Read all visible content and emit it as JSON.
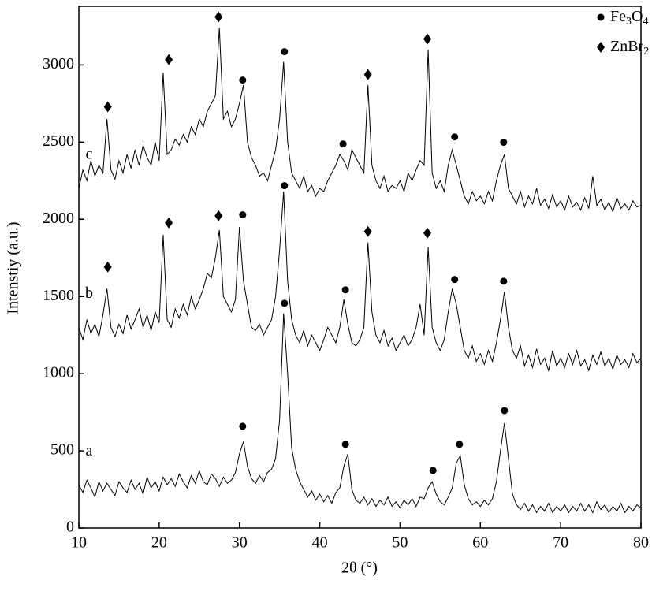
{
  "chart_data": {
    "type": "line",
    "x_label": "2θ (°)",
    "y_label": "Intenstiy (a.u.)",
    "xlim": [
      10,
      80
    ],
    "ylim": [
      0,
      3380
    ],
    "xticks": [
      10,
      20,
      30,
      40,
      50,
      60,
      70,
      80
    ],
    "yticks": [
      0,
      500,
      1000,
      1500,
      2000,
      2500,
      3000
    ],
    "x": [
      10,
      10.5,
      11,
      11.5,
      12,
      12.5,
      13,
      13.5,
      14,
      14.5,
      15,
      15.5,
      16,
      16.5,
      17,
      17.5,
      18,
      18.5,
      19,
      19.5,
      20,
      20.5,
      21,
      21.5,
      22,
      22.5,
      23,
      23.5,
      24,
      24.5,
      25,
      25.5,
      26,
      26.5,
      27,
      27.5,
      28,
      28.5,
      29,
      29.5,
      30,
      30.5,
      31,
      31.5,
      32,
      32.5,
      33,
      33.5,
      34,
      34.5,
      35,
      35.5,
      36,
      36.5,
      37,
      37.5,
      38,
      38.5,
      39,
      39.5,
      40,
      40.5,
      41,
      41.5,
      42,
      42.5,
      43,
      43.5,
      44,
      44.5,
      45,
      45.5,
      46,
      46.5,
      47,
      47.5,
      48,
      48.5,
      49,
      49.5,
      50,
      50.5,
      51,
      51.5,
      52,
      52.5,
      53,
      53.5,
      54,
      54.5,
      55,
      55.5,
      56,
      56.5,
      57,
      57.5,
      58,
      58.5,
      59,
      59.5,
      60,
      60.5,
      61,
      61.5,
      62,
      62.5,
      63,
      63.5,
      64,
      64.5,
      65,
      65.5,
      66,
      66.5,
      67,
      67.5,
      68,
      68.5,
      69,
      69.5,
      70,
      70.5,
      71,
      71.5,
      72,
      72.5,
      73,
      73.5,
      74,
      74.5,
      75,
      75.5,
      76,
      76.5,
      77,
      77.5,
      78,
      78.5,
      79,
      79.5,
      80
    ],
    "series": [
      {
        "name": "a",
        "color": "#000000",
        "values": [
          280,
          230,
          310,
          260,
          200,
          300,
          240,
          290,
          250,
          210,
          300,
          260,
          230,
          310,
          250,
          290,
          220,
          330,
          260,
          300,
          240,
          330,
          280,
          320,
          270,
          350,
          300,
          260,
          340,
          290,
          370,
          300,
          280,
          350,
          320,
          270,
          330,
          290,
          310,
          360,
          480,
          560,
          400,
          320,
          290,
          340,
          300,
          360,
          380,
          450,
          700,
          1390,
          1000,
          520,
          380,
          300,
          250,
          200,
          240,
          180,
          220,
          170,
          210,
          160,
          230,
          260,
          400,
          480,
          250,
          180,
          160,
          200,
          150,
          190,
          140,
          180,
          150,
          200,
          140,
          170,
          130,
          180,
          150,
          190,
          140,
          200,
          190,
          260,
          300,
          220,
          170,
          150,
          200,
          260,
          420,
          470,
          280,
          190,
          150,
          170,
          140,
          180,
          150,
          190,
          300,
          500,
          680,
          450,
          220,
          150,
          120,
          160,
          110,
          150,
          100,
          140,
          110,
          160,
          100,
          140,
          110,
          150,
          100,
          140,
          110,
          160,
          110,
          150,
          100,
          170,
          120,
          150,
          100,
          140,
          110,
          160,
          100,
          140,
          110,
          150,
          130
        ]
      },
      {
        "name": "b",
        "color": "#000000",
        "values": [
          1300,
          1220,
          1350,
          1260,
          1320,
          1240,
          1380,
          1550,
          1300,
          1240,
          1320,
          1260,
          1380,
          1290,
          1350,
          1420,
          1300,
          1380,
          1280,
          1400,
          1330,
          1900,
          1350,
          1300,
          1420,
          1360,
          1450,
          1380,
          1500,
          1420,
          1480,
          1550,
          1650,
          1620,
          1750,
          1930,
          1500,
          1450,
          1400,
          1480,
          1950,
          1600,
          1450,
          1300,
          1280,
          1320,
          1250,
          1300,
          1350,
          1500,
          1800,
          2180,
          1600,
          1350,
          1250,
          1200,
          1280,
          1180,
          1250,
          1200,
          1150,
          1220,
          1300,
          1250,
          1200,
          1300,
          1480,
          1320,
          1200,
          1180,
          1220,
          1300,
          1850,
          1400,
          1250,
          1200,
          1280,
          1180,
          1230,
          1150,
          1200,
          1250,
          1180,
          1220,
          1300,
          1450,
          1250,
          1820,
          1300,
          1200,
          1150,
          1220,
          1400,
          1550,
          1450,
          1300,
          1150,
          1100,
          1180,
          1080,
          1130,
          1060,
          1150,
          1080,
          1200,
          1350,
          1530,
          1300,
          1150,
          1100,
          1180,
          1050,
          1120,
          1040,
          1160,
          1060,
          1100,
          1020,
          1150,
          1050,
          1100,
          1040,
          1130,
          1060,
          1150,
          1050,
          1090,
          1020,
          1120,
          1060,
          1140,
          1050,
          1100,
          1030,
          1120,
          1060,
          1090,
          1040,
          1130,
          1070,
          1100
        ]
      },
      {
        "name": "c",
        "color": "#000000",
        "values": [
          2200,
          2320,
          2250,
          2380,
          2280,
          2350,
          2300,
          2650,
          2320,
          2260,
          2380,
          2300,
          2420,
          2330,
          2450,
          2350,
          2480,
          2400,
          2350,
          2500,
          2380,
          2950,
          2420,
          2450,
          2520,
          2480,
          2550,
          2500,
          2600,
          2550,
          2650,
          2600,
          2700,
          2750,
          2800,
          3240,
          2650,
          2700,
          2600,
          2650,
          2750,
          2870,
          2500,
          2400,
          2350,
          2280,
          2300,
          2250,
          2350,
          2450,
          2650,
          3020,
          2500,
          2300,
          2250,
          2200,
          2280,
          2180,
          2220,
          2150,
          2200,
          2180,
          2250,
          2300,
          2350,
          2420,
          2380,
          2320,
          2450,
          2400,
          2350,
          2300,
          2870,
          2350,
          2250,
          2200,
          2280,
          2180,
          2220,
          2200,
          2250,
          2180,
          2300,
          2250,
          2320,
          2380,
          2350,
          3100,
          2300,
          2200,
          2250,
          2180,
          2350,
          2450,
          2350,
          2250,
          2150,
          2100,
          2180,
          2120,
          2150,
          2100,
          2180,
          2120,
          2250,
          2350,
          2420,
          2200,
          2150,
          2100,
          2180,
          2080,
          2150,
          2100,
          2200,
          2090,
          2130,
          2070,
          2160,
          2080,
          2120,
          2060,
          2150,
          2080,
          2110,
          2060,
          2140,
          2070,
          2280,
          2090,
          2130,
          2060,
          2110,
          2050,
          2140,
          2070,
          2100,
          2060,
          2120,
          2080,
          2090
        ]
      }
    ],
    "phases": [
      {
        "name": "Fe3O4",
        "symbol": "circle",
        "points": [
          [
            30.4,
            2902
          ],
          [
            35.6,
            3086
          ],
          [
            42.9,
            2488
          ],
          [
            56.8,
            2534
          ],
          [
            62.9,
            2499
          ],
          [
            30.4,
            2029
          ],
          [
            35.6,
            2218
          ],
          [
            43.2,
            1543
          ],
          [
            56.8,
            1610
          ],
          [
            62.9,
            1599
          ],
          [
            30.4,
            659
          ],
          [
            35.6,
            1456
          ],
          [
            43.2,
            542
          ],
          [
            54.1,
            373
          ],
          [
            57.4,
            542
          ],
          [
            63.0,
            761
          ]
        ]
      },
      {
        "name": "ZnBr2",
        "symbol": "diamond",
        "points": [
          [
            13.6,
            2729
          ],
          [
            21.2,
            3035
          ],
          [
            27.4,
            3311
          ],
          [
            46.0,
            2938
          ],
          [
            53.4,
            3168
          ],
          [
            13.6,
            1691
          ],
          [
            21.2,
            1977
          ],
          [
            27.4,
            2023
          ],
          [
            46.0,
            1921
          ],
          [
            53.4,
            1911
          ]
        ]
      }
    ]
  }
}
